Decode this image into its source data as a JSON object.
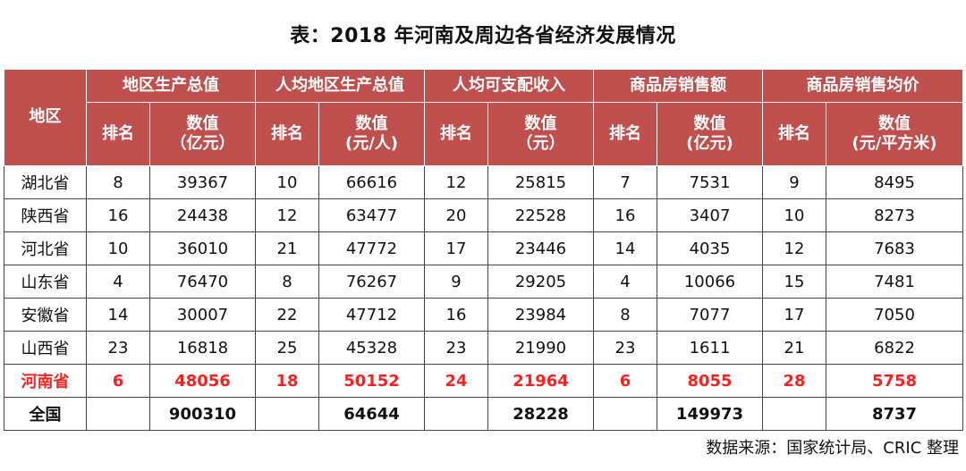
{
  "title": "表：2018 年河南及周边各省经济发展情况",
  "header": {
    "region": "地区",
    "groups": [
      "地区生产总值",
      "人均地区生产总值",
      "人均可支配收入",
      "商品房销售额",
      "商品房销售均价"
    ],
    "rank_label": "排名",
    "value_labels": [
      [
        "数值",
        "（亿元）"
      ],
      [
        "数值",
        "(元/人)"
      ],
      [
        "数值",
        "（元）"
      ],
      [
        "数值",
        "(亿元)"
      ],
      [
        "数值",
        "(元/平方米)"
      ]
    ]
  },
  "rows": [
    [
      "湖北省",
      "8",
      "39367",
      "10",
      "66616",
      "12",
      "25815",
      "7",
      "7531",
      "9",
      "8495"
    ],
    [
      "陕西省",
      "16",
      "24438",
      "12",
      "63477",
      "20",
      "22528",
      "16",
      "3407",
      "10",
      "8273"
    ],
    [
      "河北省",
      "10",
      "36010",
      "21",
      "47772",
      "17",
      "23446",
      "14",
      "4035",
      "12",
      "7683"
    ],
    [
      "山东省",
      "4",
      "76470",
      "8",
      "76267",
      "9",
      "29205",
      "4",
      "10066",
      "15",
      "7481"
    ],
    [
      "安徽省",
      "14",
      "30007",
      "22",
      "47712",
      "16",
      "23984",
      "8",
      "7077",
      "17",
      "7050"
    ],
    [
      "山西省",
      "23",
      "16818",
      "25",
      "45328",
      "23",
      "21990",
      "23",
      "1611",
      "21",
      "6822"
    ],
    [
      "河南省",
      "6",
      "48056",
      "18",
      "50152",
      "24",
      "21964",
      "6",
      "8055",
      "28",
      "5758"
    ],
    [
      "全国",
      "",
      "900310",
      "",
      "64644",
      "",
      "28228",
      "",
      "149973",
      "",
      "8737"
    ]
  ],
  "highlight_color": "#ff1f1f",
  "header_color": "#c0504d",
  "source": "数据来源：国家统计局、CRIC 整理"
}
